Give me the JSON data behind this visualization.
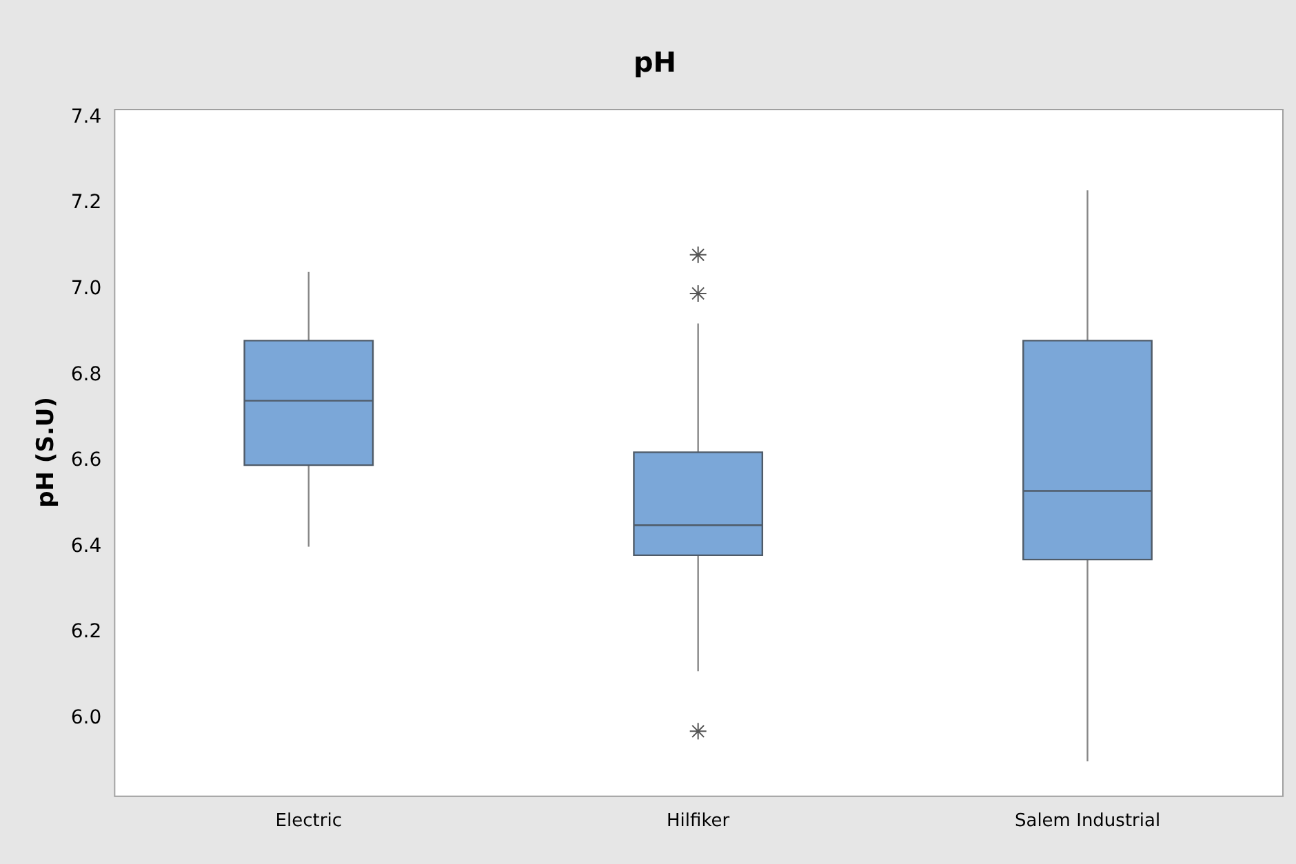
{
  "chart_data": {
    "type": "box",
    "title": "pH",
    "ylabel": "pH (S.U)",
    "categories": [
      "Electric",
      "Hilfiker",
      "Salem Industrial"
    ],
    "color": "#7ba7d8",
    "marker": "star",
    "boxes": [
      {
        "low": 6.4,
        "q1": 6.59,
        "median": 6.74,
        "q3": 6.88,
        "high": 7.04
      },
      {
        "low": 6.11,
        "q1": 6.38,
        "median": 6.45,
        "q3": 6.62,
        "high": 6.92,
        "outliers": [
          7.08,
          6.99,
          5.97
        ]
      },
      {
        "low": 5.9,
        "q1": 6.37,
        "median": 6.53,
        "q3": 6.88,
        "high": 7.23
      }
    ],
    "ylim": [
      5.82,
      7.42
    ],
    "yticks": [
      {
        "value": 6.0,
        "label": "6.0"
      },
      6.2,
      6.4,
      6.6,
      6.8,
      {
        "value": 7.0,
        "label": "7.0"
      },
      7.2,
      7.4
    ]
  }
}
